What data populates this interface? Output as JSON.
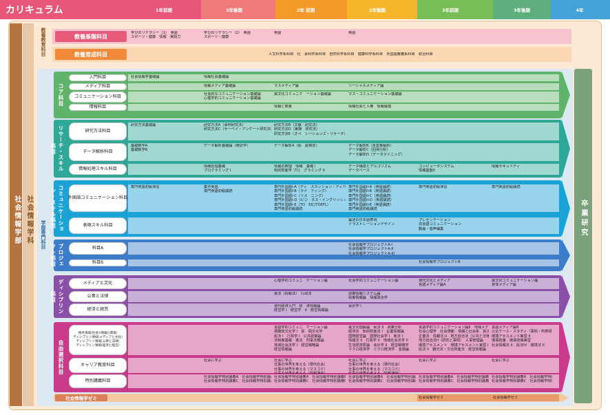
{
  "header": {
    "title": "カリキュラム",
    "terms": [
      "1年前期",
      "3年後期",
      "2年 前期",
      "2年後期",
      "3年前期",
      "3年後期",
      "4年"
    ],
    "colors": [
      "#e8577a",
      "#f08a8a",
      "#f6a030",
      "#f6c030",
      "#7fc05a",
      "#4aa0d8",
      "#4aa0d8"
    ]
  },
  "side": {
    "faculty": "社会情報学部",
    "department": "社会情報学科",
    "major": "学部専門科目",
    "general": "教養教育科目",
    "graduation": "卒業研究"
  },
  "general": {
    "rows": [
      {
        "label": "教養基盤科目",
        "cells": [
          "学びのリテラシー（1）　英語\nスポーツ・健康　情報　実践力",
          "学びのリテラシー（2）　英語\nスポーツ・健康",
          "英語",
          "英語"
        ]
      },
      {
        "label": "教養育成科目",
        "cells": [
          "人文科学系科目　社　会科学系科目　自然科学系科目　健康科学系科目　外国語教養系科目　総合科目"
        ]
      }
    ]
  },
  "groups": [
    {
      "name": "コア科目",
      "color": "#5fb36a",
      "rows": [
        {
          "label": "入門科目",
          "cells": [
            "社会情報学基礎論",
            "情報社会基礎論"
          ]
        },
        {
          "label": "メディア科目",
          "cells": [
            "",
            "情報メディア基礎論",
            "マスメディア論",
            "ソーシャルメディア論"
          ]
        },
        {
          "label": "コミュニケーション科目",
          "cells": [
            "",
            "社会的なコミュニケーション基礎論\n心理学的コミュニケーション基礎論",
            "異文化コミュニケ　ーション基礎論",
            "マス・コミュニケーション基礎論"
          ]
        },
        {
          "label": "情報科目",
          "cells": [
            "",
            "",
            "情報と数量",
            "情報社会と人権　情報倫理"
          ]
        }
      ]
    },
    {
      "name": "リサーチ・スキル科目",
      "color": "#2fa89a",
      "rows": [
        {
          "label": "研究方法科目",
          "cells": [
            "研究方法基礎論",
            "研究方法A（事例研究法）\n研究方法C（サーベイ・アンケート研究法）",
            "研究方法B（文献　研究法）\n研究方法D（実験　研究法）\n研究方法E（オペ　レーションズ・リサーチ）"
          ]
        },
        {
          "label": "データ解析科目",
          "cells": [
            "基礎数学A\n基礎数学B",
            "データ解析基礎論（統計学）",
            "データ解析A（仮　説検定）",
            "データ解析B（多変量解析）\nデータ解析C（回帰分析）\nデータ解析D（データマイニング）"
          ]
        },
        {
          "label": "情報処理スキル科目",
          "cells": [
            "",
            "情報処理基礎\nプログラミング I",
            "情報の数理　情報　基礎 I\n知的財産学 プロ　グラミング II",
            "データ構造とアルゴリズム\nデータベース",
            "コンピュータシステム\n情報基盤II",
            "情報セキュリティ"
          ]
        }
      ]
    },
    {
      "name": "コミュニケーション・スキル科目",
      "color": "#1ba3d6",
      "rows": [
        {
          "label": "外国語コミュニケーション科目",
          "cells": [
            "専門英語初級演習",
            "集中英語\n専門英語初級講読",
            "専門外国語I-A（ディ　スカッション・ディベート）\n専門外国語I-B（ライ　ティング）\n専門外国語I-C（リス　ニング）\n専門外国語I-D（ビジ　ネス・イングリッシュ）\n専門外国語I-E（TO　EIC/TOEFL）\n専門英語初級講読",
            "専門外国語II-A（英語講読）\n専門外国語II-B（英語講読）\n専門外国語II-C（英語講読）\n専門外国語II-D（英語講読）\n専門外国語II-E（英語講読）\n専門英語初級講読",
            "専門英語初級演習",
            "専門英語初級講読"
          ]
        },
        {
          "label": "表現スキル科目",
          "cells": [
            "",
            "",
            "",
            "論述の日本語表現\nイラストレーションデザイン",
            "プレゼンテーション\n非言語コミュニケーション\n動画・音声編集"
          ]
        }
      ]
    },
    {
      "name": "プロジェクト科目",
      "color": "#3d7cc9",
      "rows": [
        {
          "label": "科目A",
          "cells": [
            "",
            "",
            "",
            "社会情報学プロジェクトA-I\n社会情報学プロジェクトA-II\n社会情報学プロジェクトA-III"
          ]
        },
        {
          "label": "科目B",
          "cells": [
            "",
            "",
            "",
            "",
            "社会情報学プロジェクトB"
          ]
        }
      ]
    },
    {
      "name": "ディシプリン科目",
      "color": "#8a4fa6",
      "rows": [
        {
          "label": "メディアと文化",
          "cells": [
            "",
            "",
            "心理学的コミュニ　ケーション論",
            "社会学的コミュニケーション論",
            "現代文化とメディア\n言語メディア論A",
            "異文化コミュニケーション論\n身体メディア論"
          ]
        },
        {
          "label": "公衆と法律",
          "cells": [
            "",
            "",
            "憲法（情報法）　行政法",
            "政策情報システム論\n政策情報論　情報政治学"
          ]
        },
        {
          "label": "経済と経営",
          "cells": [
            "",
            "",
            "現代経済入門　経　済情報論\n経営学 I　経営学　II　経営情報論",
            "会計学 I"
          ]
        }
      ]
    },
    {
      "name": "自由選択科目",
      "color": "#c83a8a",
      "rows": [
        {
          "label": "視点領域(社会)(情報)(環境)\nディシプリン領域(メディアと文化)\nディシプリン領域(公衆と法律)\nディシプリン領域(経済と経営)",
          "cells": [
            "",
            "",
            "言語学的コミュニ　ケーション論\n視聴覚文化学 I　民　間文化学\n民法 I　行政学 I　公共政策論\n法制度基礎　憲法　刑事法概論\n地域社会法学 I　経営戦略論\n経営情報論",
            "異文化理解論　民法 II　政策分析\n経済法　知的財産法 I　企業情報論\n国際経営論　国際社会学 I　商法 I\n情報法 II　行政学 II　地域社会法学 II\n生活経済原論　会計学 II　経営戦略学\nマクロ経済学　ミクロ経済学　金融論",
            "言語学的コミュニケーション論II　地域メディア論\n社会心理学　社会規範　情報と社会系　民法\n企業法　情報法 II　地方自治法（公共と法律）\n地方自治法II（研究と事例）　人事管理論\n環境アセスメント　環境アセスメント実習 I\n民法 II　観光法・文化財産法　経営情報論",
            "言語メディア論B\n公企ケース・スタディ（事例・判例研究）\n環境アセスメント実習 II\n環境政策　環境政策実習\n社会情報法 II　民法IV　環境法 II"
          ]
        },
        {
          "label": "キャリア教育科目",
          "cells": [
            "",
            "社会に学ぶ",
            "社会に学ぶ\n仕事の世界を考える（現代社会）\n仕事の世界を考える（マスコミ）\n仕事の世界を考える（情報通信）",
            "社会に学ぶ\n仕事の世界を考える（現代社会）\n仕事の世界を考える（マスコミ）\n仕事の世界を考える（情報通信）",
            "社会に学ぶ",
            "社会に学ぶ"
          ]
        },
        {
          "label": "特別講義科目",
          "cells": [
            "",
            "社会情報学特別講義A　社会情報学特別講義B\n社会情報学特別講義C　社会情報学特別講義D",
            "社会情報学特別講義A　社会情報学特別講義B\n社会情報学特別講義C　社会情報学特別講義D",
            "社会情報学特別講義A　社会情報学特別講義B\n社会情報学特別講義C　社会情報学特別講義D",
            "社会情報学特別講義A　社会情報学特別講義B\n社会情報学特別講義C　社会情報学特別講義D",
            "社会情報学特別講義A　社会情報学特別講義B\n社会情報学特別講義C　社会情報学特別講義D"
          ]
        }
      ]
    }
  ],
  "seminar": {
    "label": "社会情報学ゼミ",
    "cells": [
      "社会情報学ゼミ",
      "社会情報学ゼミ"
    ]
  }
}
